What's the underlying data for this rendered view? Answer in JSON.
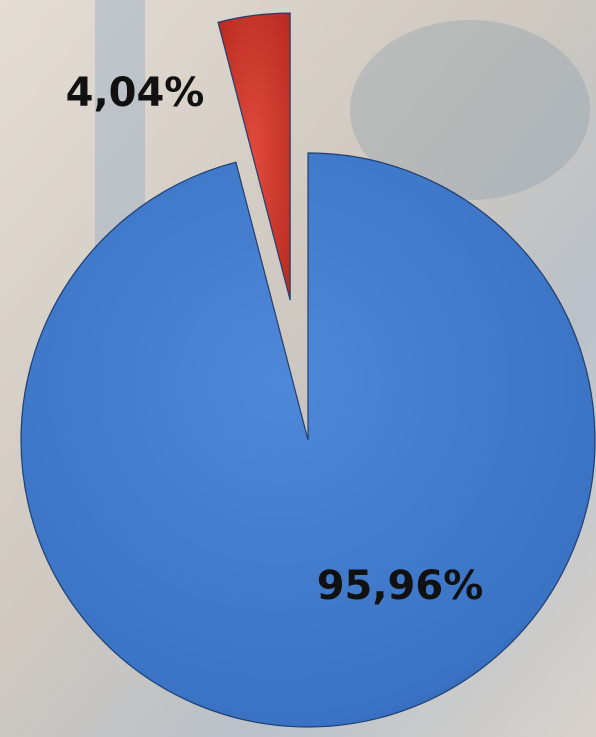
{
  "chart_data": {
    "type": "pie",
    "values": [
      95.96,
      4.04
    ],
    "value_labels": [
      "95,96%",
      "4,04%"
    ],
    "colors": [
      "#3f78c9",
      "#d8382c"
    ]
  }
}
